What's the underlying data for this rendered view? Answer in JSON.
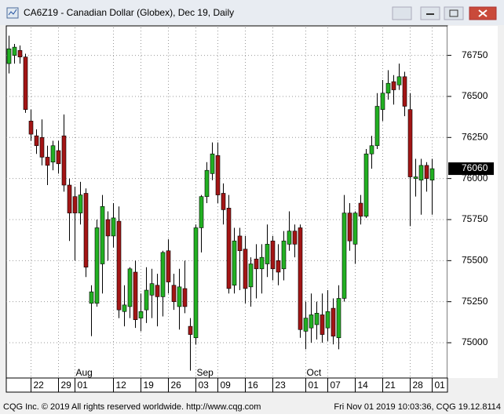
{
  "chart_data": {
    "type": "candlestick",
    "title": "CA6Z19 - Canadian Dollar (Globex), Dec 19, Daily",
    "categories": [
      null,
      null,
      null,
      null,
      "22",
      null,
      null,
      null,
      null,
      "29",
      null,
      null,
      "01",
      null,
      null,
      null,
      null,
      null,
      null,
      "12",
      null,
      null,
      null,
      null,
      "19",
      null,
      null,
      null,
      null,
      "26",
      null,
      null,
      null,
      null,
      "03",
      null,
      null,
      null,
      "09",
      null,
      null,
      null,
      null,
      "16",
      null,
      null,
      null,
      null,
      "23",
      null,
      null,
      null,
      null,
      null,
      "01",
      null,
      null,
      null,
      "07",
      null,
      null,
      null,
      null,
      "14",
      null,
      null,
      null,
      null,
      "21",
      null,
      null,
      null,
      null,
      "28",
      null,
      null,
      null,
      "01"
    ],
    "months": [
      {
        "category": 12,
        "label": "Aug"
      },
      {
        "category": 34,
        "label": "Sep"
      },
      {
        "category": 54,
        "label": "Oct"
      }
    ],
    "open": [
      76700,
      76750,
      76780,
      76740,
      76350,
      76260,
      76250,
      76130,
      76100,
      76170,
      76260,
      75960,
      75890,
      75790,
      75910,
      75240,
      75240,
      75480,
      75750,
      75650,
      75740,
      75190,
      75220,
      75430,
      75150,
      75200,
      75290,
      75350,
      75280,
      75560,
      75350,
      75220,
      75330,
      75100,
      75030,
      75700,
      75890,
      76030,
      76140,
      75910,
      75820,
      75350,
      75650,
      75570,
      75340,
      75510,
      75450,
      75480,
      75620,
      75500,
      75450,
      75600,
      75680,
      75700,
      75070,
      75090,
      75110,
      75170,
      75090,
      75210,
      75030,
      75270,
      75790,
      75600,
      75850,
      75770,
      76150,
      76200,
      76420,
      76520,
      76590,
      76570,
      76620,
      76420,
      76000,
      75990,
      76080,
      75990
    ],
    "high": [
      76870,
      76820,
      76810,
      76760,
      76420,
      76300,
      76360,
      76200,
      76230,
      76230,
      76390,
      76000,
      75950,
      75980,
      75940,
      75350,
      75750,
      75900,
      75800,
      75850,
      75830,
      75350,
      75460,
      75500,
      75300,
      75460,
      75450,
      75420,
      75560,
      75630,
      75420,
      75450,
      75500,
      75150,
      75720,
      75900,
      76100,
      76220,
      76220,
      75970,
      75900,
      75700,
      75700,
      75650,
      75520,
      75600,
      75600,
      75720,
      75650,
      75600,
      75680,
      75800,
      75720,
      75720,
      75250,
      75300,
      75250,
      75300,
      75320,
      75270,
      75350,
      75900,
      75850,
      75800,
      75900,
      76180,
      76260,
      76520,
      76600,
      76660,
      76630,
      76700,
      76650,
      76520,
      76120,
      76120,
      76100,
      76120
    ],
    "low": [
      76640,
      76700,
      76700,
      76400,
      76230,
      76150,
      76080,
      75960,
      76050,
      76030,
      75920,
      75620,
      75500,
      75720,
      75400,
      75040,
      75220,
      75300,
      75500,
      75580,
      75150,
      75100,
      75150,
      75090,
      75070,
      75120,
      75150,
      75100,
      75160,
      75300,
      75200,
      75080,
      75180,
      74830,
      74990,
      75550,
      75850,
      75990,
      75850,
      75720,
      75300,
      75300,
      75320,
      75240,
      75220,
      75270,
      75300,
      75400,
      75380,
      75350,
      75380,
      75560,
      75520,
      75030,
      74960,
      75000,
      75020,
      75000,
      75010,
      74990,
      74960,
      75250,
      75560,
      75480,
      75720,
      75760,
      76060,
      76180,
      76350,
      76480,
      76450,
      76540,
      76380,
      75710,
      75890,
      75780,
      75920,
      75780
    ],
    "close": [
      76790,
      76800,
      76740,
      76420,
      76270,
      76200,
      76130,
      76080,
      76200,
      76090,
      75960,
      75790,
      75790,
      75900,
      75460,
      75310,
      75700,
      75830,
      75650,
      75760,
      75200,
      75230,
      75450,
      75140,
      75190,
      75320,
      75360,
      75280,
      75550,
      75370,
      75250,
      75340,
      75220,
      75050,
      75700,
      75890,
      76050,
      76150,
      75900,
      75810,
      75330,
      75620,
      75560,
      75330,
      75480,
      75450,
      75520,
      75600,
      75450,
      75430,
      75620,
      75680,
      75600,
      75080,
      75150,
      75170,
      75180,
      75050,
      75190,
      75040,
      75270,
      75790,
      75620,
      75790,
      75770,
      76150,
      76200,
      76440,
      76520,
      76580,
      76540,
      76620,
      76440,
      76010,
      76010,
      76080,
      76000,
      76060
    ],
    "up_color": "#22b022",
    "down_color": "#a31515",
    "last_price": 76060,
    "ylim": [
      74790,
      76920
    ],
    "yticks": [
      75000,
      75250,
      75500,
      75750,
      76000,
      76250,
      76500,
      76750
    ],
    "grid": true
  },
  "footer": {
    "left": "CQG Inc. © 2019 All rights reserved worldwide. http://www.cqg.com",
    "right": "Fri Nov 01 2019 10:03:36, CQG 19.12.8114"
  }
}
